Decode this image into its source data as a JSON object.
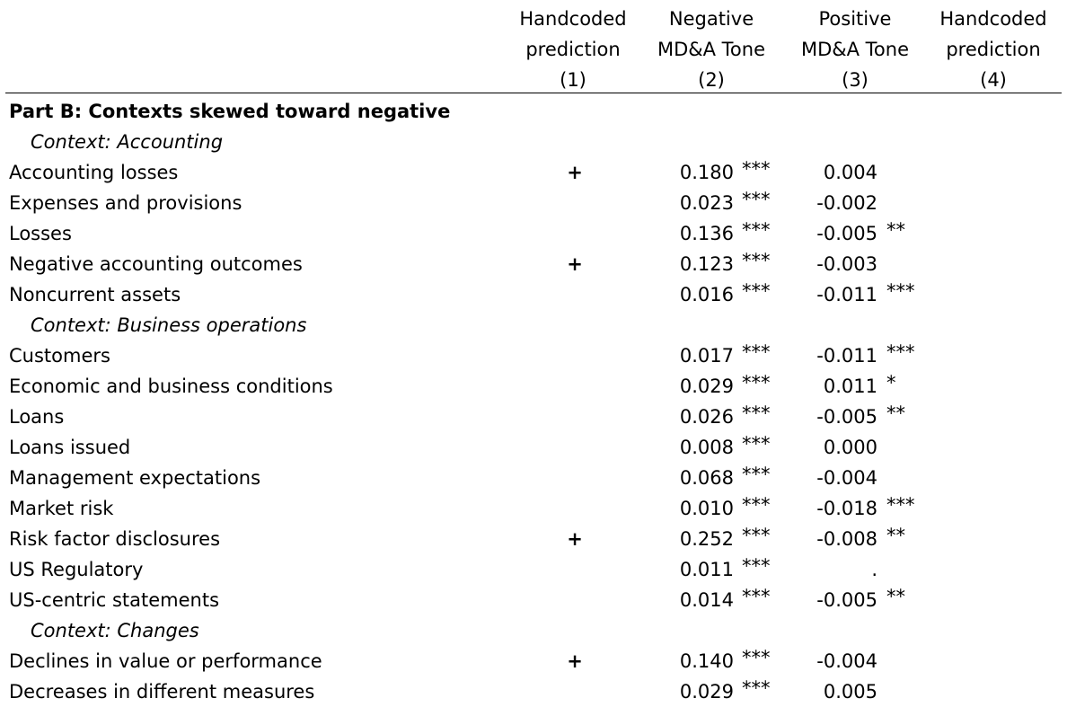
{
  "headers": [
    {
      "line1": "Handcoded",
      "line2": "prediction",
      "num": "(1)"
    },
    {
      "line1": "Negative",
      "line2": "MD&A Tone",
      "num": "(2)"
    },
    {
      "line1": "Positive",
      "line2": "MD&A Tone",
      "num": "(3)"
    },
    {
      "line1": "Handcoded",
      "line2": "prediction",
      "num": "(4)"
    }
  ],
  "rows": [
    {
      "type": "section",
      "label": "Part B: Contexts skewed toward negative"
    },
    {
      "type": "context",
      "label": "Context: Accounting"
    },
    {
      "type": "data",
      "label": "Accounting losses",
      "pred": "+",
      "v2": "0.180",
      "s2": "***",
      "v3": "0.004",
      "s3": ""
    },
    {
      "type": "data",
      "label": "Expenses and provisions",
      "pred": "",
      "v2": "0.023",
      "s2": "***",
      "v3": "-0.002",
      "s3": ""
    },
    {
      "type": "data",
      "label": "Losses",
      "pred": "",
      "v2": "0.136",
      "s2": "***",
      "v3": "-0.005",
      "s3": "**"
    },
    {
      "type": "data",
      "label": "Negative accounting outcomes",
      "pred": "+",
      "v2": "0.123",
      "s2": "***",
      "v3": "-0.003",
      "s3": ""
    },
    {
      "type": "data",
      "label": "Noncurrent assets",
      "pred": "",
      "v2": "0.016",
      "s2": "***",
      "v3": "-0.011",
      "s3": "***"
    },
    {
      "type": "context",
      "label": "Context: Business operations"
    },
    {
      "type": "data",
      "label": "Customers",
      "pred": "",
      "v2": "0.017",
      "s2": "***",
      "v3": "-0.011",
      "s3": "***"
    },
    {
      "type": "data",
      "label": "Economic and business conditions",
      "pred": "",
      "v2": "0.029",
      "s2": "***",
      "v3": "0.011",
      "s3": "*"
    },
    {
      "type": "data",
      "label": "Loans",
      "pred": "",
      "v2": "0.026",
      "s2": "***",
      "v3": "-0.005",
      "s3": "**"
    },
    {
      "type": "data",
      "label": "Loans issued",
      "pred": "",
      "v2": "0.008",
      "s2": "***",
      "v3": "0.000",
      "s3": ""
    },
    {
      "type": "data",
      "label": "Management expectations",
      "pred": "",
      "v2": "0.068",
      "s2": "***",
      "v3": "-0.004",
      "s3": ""
    },
    {
      "type": "data",
      "label": "Market risk",
      "pred": "",
      "v2": "0.010",
      "s2": "***",
      "v3": "-0.018",
      "s3": "***"
    },
    {
      "type": "data",
      "label": "Risk factor disclosures",
      "pred": "+",
      "v2": "0.252",
      "s2": "***",
      "v3": "-0.008",
      "s3": "**"
    },
    {
      "type": "data",
      "label": "US Regulatory",
      "pred": "",
      "v2": "0.011",
      "s2": "***",
      "v3": ".",
      "s3": ""
    },
    {
      "type": "data",
      "label": "US-centric statements",
      "pred": "",
      "v2": "0.014",
      "s2": "***",
      "v3": "-0.005",
      "s3": "**"
    },
    {
      "type": "context",
      "label": "Context: Changes"
    },
    {
      "type": "data",
      "label": "Declines in value or performance",
      "pred": "+",
      "v2": "0.140",
      "s2": "***",
      "v3": "-0.004",
      "s3": ""
    },
    {
      "type": "data",
      "label": "Decreases in different measures",
      "pred": "",
      "v2": "0.029",
      "s2": "***",
      "v3": "0.005",
      "s3": ""
    }
  ]
}
